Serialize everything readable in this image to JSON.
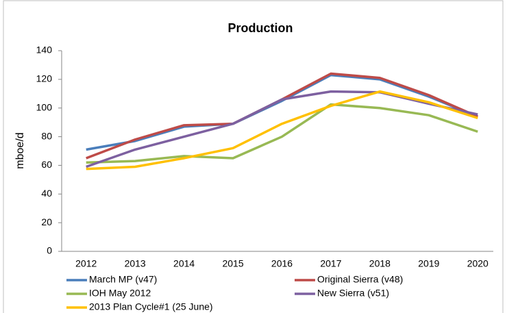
{
  "chart_data": {
    "type": "line",
    "title": "Production",
    "y_label": "mboe/d",
    "categories": [
      "2012",
      "2013",
      "2014",
      "2015",
      "2016",
      "2017",
      "2018",
      "2019",
      "2020"
    ],
    "series": [
      {
        "name": "March MP (v47)",
        "color": "#4a7ebb",
        "values": [
          71,
          77,
          87,
          89,
          105,
          123,
          120,
          108,
          94
        ]
      },
      {
        "name": "Original Sierra (v48)",
        "color": "#be4b48",
        "values": [
          65,
          78,
          88,
          89,
          106,
          124,
          121,
          109,
          94
        ]
      },
      {
        "name": "IOH May 2012",
        "color": "#98b954",
        "values": [
          62,
          63,
          66.5,
          65,
          80,
          102.5,
          100,
          95,
          83.5
        ]
      },
      {
        "name": "New Sierra (v51)",
        "color": "#7d60a0",
        "values": [
          59,
          71,
          80,
          89,
          106,
          111.5,
          111,
          103,
          95.5
        ]
      },
      {
        "name": "2013 Plan Cycle#1 (25 June)",
        "color": "#ffc000",
        "values": [
          57.5,
          59,
          65,
          72,
          89,
          101.5,
          111.5,
          104,
          93
        ]
      }
    ],
    "ylim": [
      0,
      140
    ],
    "yticks": [
      0,
      20,
      40,
      60,
      80,
      100,
      120,
      140
    ],
    "grid": false
  }
}
